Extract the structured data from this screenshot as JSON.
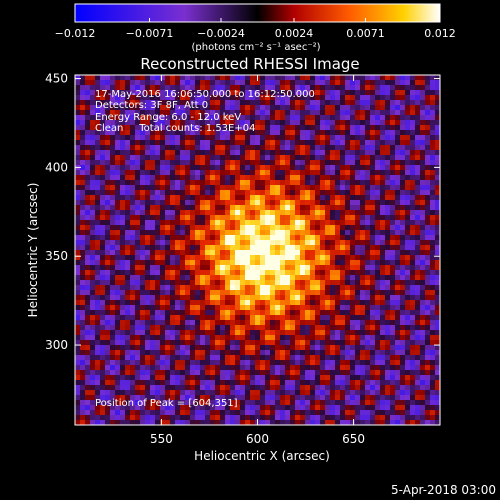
{
  "colorbar": {
    "tick_labels": [
      "−0.012",
      "−0.0071",
      "−0.0024",
      "0.0024",
      "0.0071",
      "0.012"
    ],
    "tick_values": [
      -0.012,
      -0.0071,
      -0.0024,
      0.0024,
      0.0071,
      0.012
    ],
    "range": [
      -0.012,
      0.012
    ],
    "unit_label": "(photons cm⁻² s⁻¹ asec⁻²)",
    "colors": [
      "#0000ff",
      "#7a2fd0",
      "#000000",
      "#b00000",
      "#ff5a00",
      "#ffd000",
      "#ffffff"
    ]
  },
  "chart_data": {
    "type": "heatmap",
    "title": "Reconstructed RHESSI Image",
    "xlabel": "Heliocentric X (arcsec)",
    "ylabel": "Heliocentric Y (arcsec)",
    "xlim": [
      505,
      695
    ],
    "ylim": [
      255,
      452
    ],
    "x_ticks": [
      550,
      600,
      650
    ],
    "y_ticks": [
      300,
      350,
      400,
      450
    ],
    "annotations": [
      "17-May-2016 16:06:50.000 to 16:12:50.000",
      "Detectors: 3F 8F, Att 0",
      "Energy Range: 6.0 - 12.0 keV",
      "Clean     Total counts: 1.53E+04"
    ],
    "peak_label": "Position of Peak = [604,351]",
    "peak": [
      604,
      351
    ]
  },
  "footer": {
    "date": "5-Apr-2018 03:00"
  }
}
